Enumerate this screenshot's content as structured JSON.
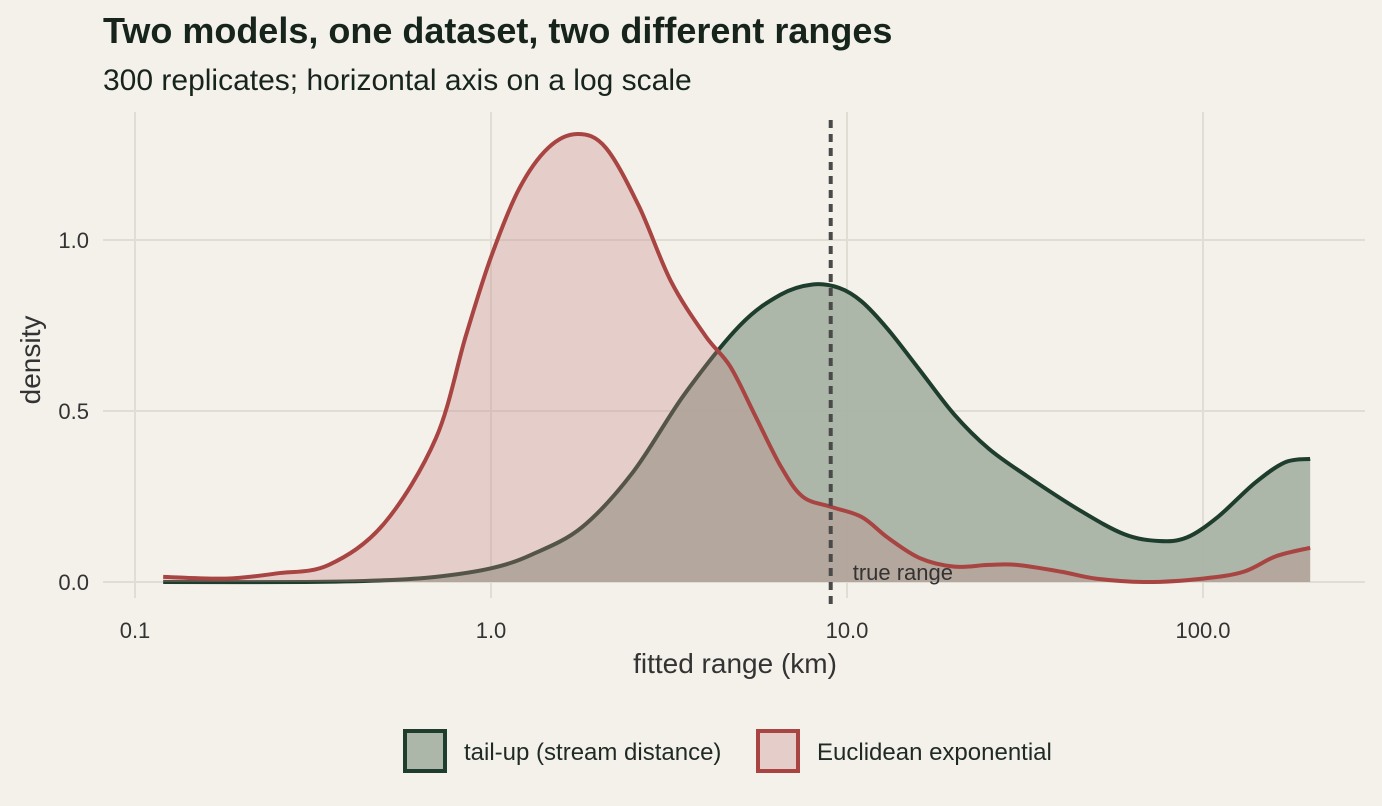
{
  "chart_data": {
    "type": "area",
    "title": "Two models, one dataset, two different ranges",
    "subtitle": "300 replicates; horizontal axis on a log scale",
    "xlabel": "fitted range (km)",
    "ylabel": "density",
    "x_scale": "log10",
    "xlim": [
      0.1,
      200
    ],
    "ylim": [
      0,
      1.3
    ],
    "x_ticks": [
      0.1,
      1.0,
      10.0,
      100.0
    ],
    "x_tick_labels": [
      "0.1",
      "1.0",
      "10.0",
      "100.0"
    ],
    "y_ticks": [
      0.0,
      0.5,
      1.0
    ],
    "y_tick_labels": [
      "0.0",
      "0.5",
      "1.0"
    ],
    "grid": true,
    "legend_position": "bottom",
    "reference_line": {
      "x": 9.0,
      "label": "true range",
      "style": "dashed",
      "color": "#4a4a4a"
    },
    "series": [
      {
        "name": "tail-up (stream distance)",
        "stroke": "#1e3d2c",
        "fill": "#a8b3a6",
        "points": [
          [
            0.12,
            0.0
          ],
          [
            0.3,
            0.0
          ],
          [
            0.5,
            0.005
          ],
          [
            0.7,
            0.015
          ],
          [
            1.0,
            0.04
          ],
          [
            1.3,
            0.08
          ],
          [
            1.8,
            0.16
          ],
          [
            2.5,
            0.32
          ],
          [
            3.5,
            0.55
          ],
          [
            5.0,
            0.75
          ],
          [
            6.5,
            0.84
          ],
          [
            8.0,
            0.87
          ],
          [
            9.5,
            0.86
          ],
          [
            11.0,
            0.82
          ],
          [
            13.0,
            0.74
          ],
          [
            16.0,
            0.62
          ],
          [
            20.0,
            0.49
          ],
          [
            25.0,
            0.39
          ],
          [
            32.0,
            0.31
          ],
          [
            45.0,
            0.21
          ],
          [
            60.0,
            0.14
          ],
          [
            75.0,
            0.12
          ],
          [
            90.0,
            0.13
          ],
          [
            110.0,
            0.19
          ],
          [
            140.0,
            0.29
          ],
          [
            170.0,
            0.35
          ],
          [
            200.0,
            0.36
          ]
        ]
      },
      {
        "name": "Euclidean exponential",
        "stroke": "#a84442",
        "fill": "#c8878688",
        "points": [
          [
            0.12,
            0.015
          ],
          [
            0.18,
            0.01
          ],
          [
            0.25,
            0.025
          ],
          [
            0.35,
            0.05
          ],
          [
            0.5,
            0.17
          ],
          [
            0.7,
            0.42
          ],
          [
            0.85,
            0.72
          ],
          [
            1.0,
            0.95
          ],
          [
            1.2,
            1.15
          ],
          [
            1.45,
            1.27
          ],
          [
            1.75,
            1.31
          ],
          [
            2.1,
            1.27
          ],
          [
            2.6,
            1.1
          ],
          [
            3.2,
            0.88
          ],
          [
            4.0,
            0.72
          ],
          [
            4.7,
            0.63
          ],
          [
            5.5,
            0.49
          ],
          [
            6.5,
            0.34
          ],
          [
            7.5,
            0.25
          ],
          [
            9.0,
            0.22
          ],
          [
            11.0,
            0.19
          ],
          [
            13.0,
            0.13
          ],
          [
            16.0,
            0.07
          ],
          [
            20.0,
            0.045
          ],
          [
            25.0,
            0.05
          ],
          [
            30.0,
            0.05
          ],
          [
            40.0,
            0.03
          ],
          [
            50.0,
            0.01
          ],
          [
            70.0,
            0.0
          ],
          [
            100.0,
            0.01
          ],
          [
            130.0,
            0.03
          ],
          [
            160.0,
            0.075
          ],
          [
            200.0,
            0.1
          ]
        ]
      }
    ]
  }
}
